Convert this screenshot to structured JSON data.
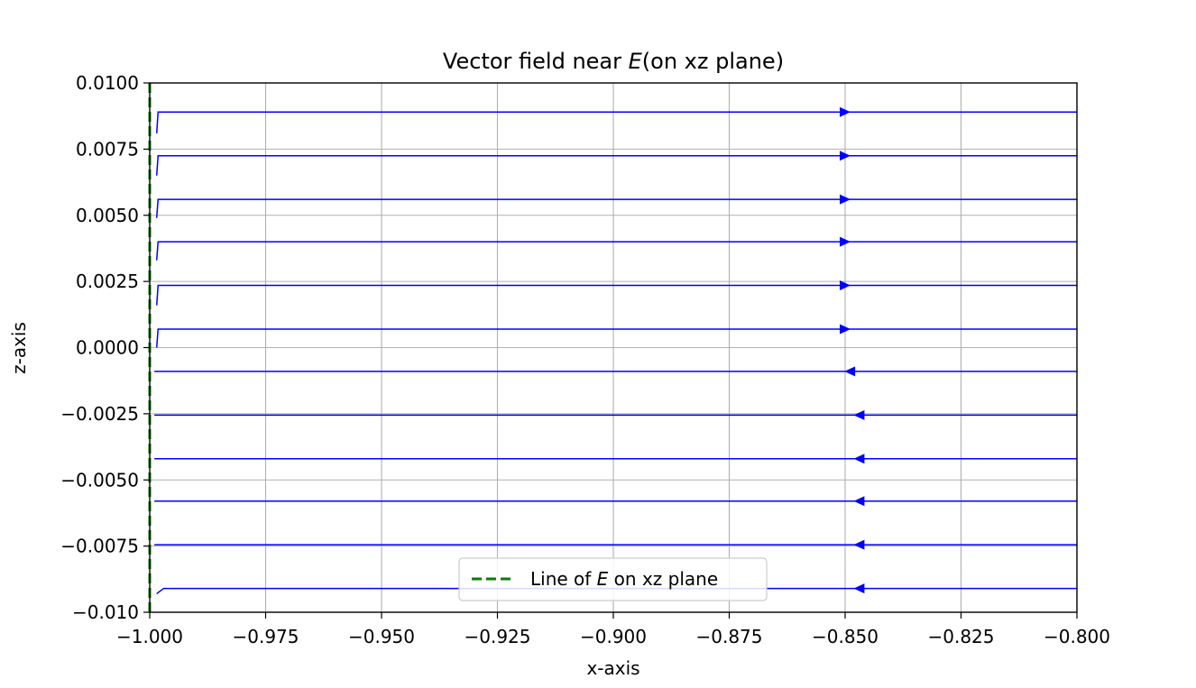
{
  "chart_data": {
    "type": "streamplot",
    "title_prefix": "Vector field near ",
    "title_symbol": "E",
    "title_suffix": "(on xz plane)",
    "xlabel": "x-axis",
    "ylabel": "z-axis",
    "xlim": [
      -1.0,
      -0.8
    ],
    "ylim": [
      -0.01,
      0.01
    ],
    "grid": true,
    "x_ticks": [
      -1.0,
      -0.975,
      -0.95,
      -0.925,
      -0.9,
      -0.875,
      -0.85,
      -0.825,
      -0.8
    ],
    "x_tick_labels": [
      "−1.000",
      "−0.975",
      "−0.950",
      "−0.925",
      "−0.900",
      "−0.875",
      "−0.850",
      "−0.825",
      "−0.800"
    ],
    "y_ticks": [
      -0.01,
      -0.0075,
      -0.005,
      -0.0025,
      0.0,
      0.0025,
      0.005,
      0.0075,
      0.01
    ],
    "y_tick_labels": [
      "−0.010",
      "−0.0075",
      "−0.0050",
      "−0.0025",
      "0.0000",
      "0.0025",
      "0.0050",
      "0.0075",
      "0.0100"
    ],
    "streamlines": [
      {
        "z": 0.0089,
        "z_start": 0.0081,
        "x_start": -0.9985,
        "x_bend": -0.9982,
        "x_arrow": -0.85,
        "direction": "right"
      },
      {
        "z": 0.00725,
        "z_start": 0.0065,
        "x_start": -0.9985,
        "x_bend": -0.9982,
        "x_arrow": -0.85,
        "direction": "right"
      },
      {
        "z": 0.0056,
        "z_start": 0.0049,
        "x_start": -0.9985,
        "x_bend": -0.9982,
        "x_arrow": -0.85,
        "direction": "right"
      },
      {
        "z": 0.004,
        "z_start": 0.0033,
        "x_start": -0.9985,
        "x_bend": -0.9982,
        "x_arrow": -0.85,
        "direction": "right"
      },
      {
        "z": 0.00235,
        "z_start": 0.0016,
        "x_start": -0.9985,
        "x_bend": -0.9982,
        "x_arrow": -0.85,
        "direction": "right"
      },
      {
        "z": 0.0007,
        "z_start": 0.0,
        "x_start": -0.9985,
        "x_bend": -0.9982,
        "x_arrow": -0.85,
        "direction": "right"
      },
      {
        "z": -0.0009,
        "z_start": -0.0009,
        "x_start": -0.999,
        "x_bend": -0.999,
        "x_arrow": -0.849,
        "direction": "left"
      },
      {
        "z": -0.00255,
        "z_start": -0.00255,
        "x_start": -0.999,
        "x_bend": -0.999,
        "x_arrow": -0.847,
        "direction": "left"
      },
      {
        "z": -0.0042,
        "z_start": -0.0042,
        "x_start": -0.999,
        "x_bend": -0.999,
        "x_arrow": -0.847,
        "direction": "left"
      },
      {
        "z": -0.0058,
        "z_start": -0.0058,
        "x_start": -0.999,
        "x_bend": -0.999,
        "x_arrow": -0.847,
        "direction": "left"
      },
      {
        "z": -0.00745,
        "z_start": -0.00745,
        "x_start": -0.999,
        "x_bend": -0.999,
        "x_arrow": -0.847,
        "direction": "left"
      },
      {
        "z": -0.0091,
        "z_start": -0.0093,
        "x_start": -0.9985,
        "x_bend": -0.997,
        "x_arrow": -0.847,
        "direction": "left"
      }
    ],
    "e_line": {
      "x": -1.0,
      "color": "#008000",
      "style": "dashed"
    },
    "stream_color": "#0000ff",
    "grid_color": "#b0b0b0",
    "legend": {
      "placement": "lower-center",
      "label_prefix": "Line of ",
      "label_symbol": "E",
      "label_suffix": " on xz plane"
    }
  }
}
